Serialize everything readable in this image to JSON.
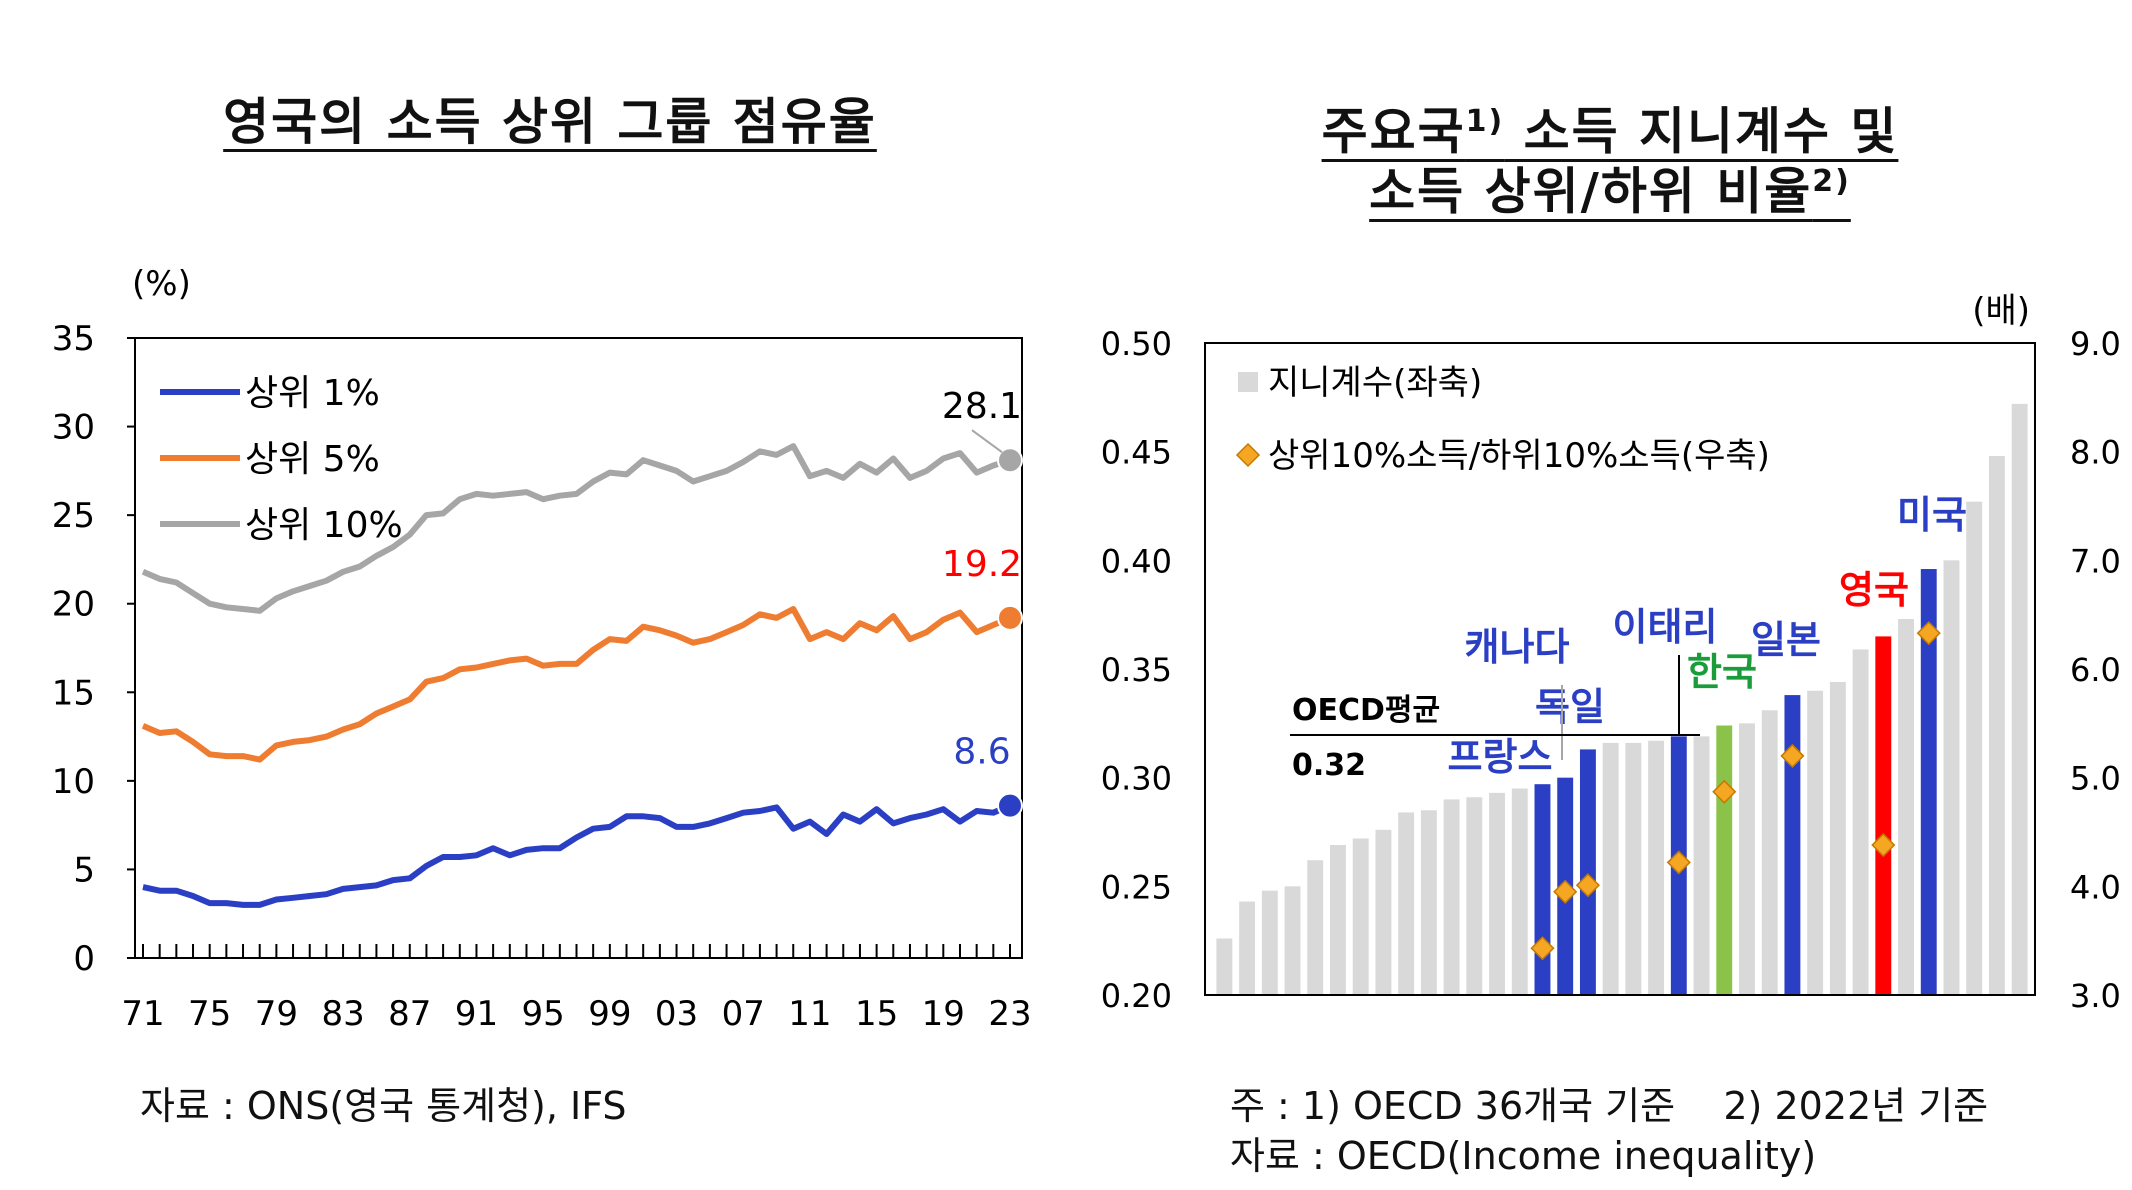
{
  "left_title": "영국의 소득 상위 그룹 점유율",
  "right_title": {
    "line1": "주요국",
    "line1_sup": "1)",
    "line1_rest": " 소득 지니계수 및",
    "line2": "소득 상위/하위 비율",
    "line2_sup": "2)"
  },
  "left_source": "자료 : ONS(영국 통계청), IFS",
  "right_note": "주 : 1) OECD 36개국 기준    2) 2022년 기준",
  "right_source": "자료 : OECD(Income inequality)",
  "chart_data": [
    {
      "type": "line",
      "ylabel": "(%)",
      "ylim": [
        0,
        35
      ],
      "yticks": [
        0,
        5,
        10,
        15,
        20,
        25,
        30,
        35
      ],
      "xticks": [
        "71",
        "75",
        "79",
        "83",
        "87",
        "91",
        "95",
        "99",
        "03",
        "07",
        "11",
        "15",
        "19",
        "23"
      ],
      "x": [
        1971,
        1972,
        1973,
        1974,
        1975,
        1976,
        1977,
        1978,
        1979,
        1980,
        1981,
        1982,
        1983,
        1984,
        1985,
        1986,
        1987,
        1988,
        1989,
        1990,
        1991,
        1992,
        1993,
        1994,
        1995,
        1996,
        1997,
        1998,
        1999,
        2000,
        2001,
        2002,
        2003,
        2004,
        2005,
        2006,
        2007,
        2008,
        2009,
        2010,
        2011,
        2012,
        2013,
        2014,
        2015,
        2016,
        2017,
        2018,
        2019,
        2020,
        2021,
        2022,
        2023
      ],
      "legend_position": "top-left",
      "series": [
        {
          "name": "상위 1%",
          "color": "#2b3fc4",
          "end_label": "8.6",
          "end_label_color": "#2b3fc4",
          "values": [
            4.0,
            3.8,
            3.8,
            3.5,
            3.1,
            3.1,
            3.0,
            3.0,
            3.3,
            3.4,
            3.5,
            3.6,
            3.9,
            4.0,
            4.1,
            4.4,
            4.5,
            5.2,
            5.7,
            5.7,
            5.8,
            6.2,
            5.8,
            6.1,
            6.2,
            6.2,
            6.8,
            7.3,
            7.4,
            8.0,
            8.0,
            7.9,
            7.4,
            7.4,
            7.6,
            7.9,
            8.2,
            8.3,
            8.5,
            7.3,
            7.7,
            7.0,
            8.1,
            7.7,
            8.4,
            7.6,
            7.9,
            8.1,
            8.4,
            7.7,
            8.3,
            8.2,
            8.6
          ]
        },
        {
          "name": "상위 5%",
          "color": "#ee7d31",
          "end_label": "19.2",
          "end_label_color": "#ff0000",
          "values": [
            13.1,
            12.7,
            12.8,
            12.2,
            11.5,
            11.4,
            11.4,
            11.2,
            12.0,
            12.2,
            12.3,
            12.5,
            12.9,
            13.2,
            13.8,
            14.2,
            14.6,
            15.6,
            15.8,
            16.3,
            16.4,
            16.6,
            16.8,
            16.9,
            16.5,
            16.6,
            16.6,
            17.4,
            18.0,
            17.9,
            18.7,
            18.5,
            18.2,
            17.8,
            18.0,
            18.4,
            18.8,
            19.4,
            19.2,
            19.7,
            18.0,
            18.4,
            18.0,
            18.9,
            18.5,
            19.3,
            18.0,
            18.4,
            19.1,
            19.5,
            18.4,
            18.8,
            19.2
          ]
        },
        {
          "name": "상위 10%",
          "color": "#a6a6a6",
          "end_label": "28.1",
          "end_label_color": "#000000",
          "values": [
            21.8,
            21.4,
            21.2,
            20.6,
            20.0,
            19.8,
            19.7,
            19.6,
            20.3,
            20.7,
            21.0,
            21.3,
            21.8,
            22.1,
            22.7,
            23.2,
            23.9,
            25.0,
            25.1,
            25.9,
            26.2,
            26.1,
            26.2,
            26.3,
            25.9,
            26.1,
            26.2,
            26.9,
            27.4,
            27.3,
            28.1,
            27.8,
            27.5,
            26.9,
            27.2,
            27.5,
            28.0,
            28.6,
            28.4,
            28.9,
            27.2,
            27.5,
            27.1,
            27.9,
            27.4,
            28.2,
            27.1,
            27.5,
            28.2,
            28.5,
            27.4,
            27.8,
            28.1
          ]
        }
      ]
    },
    {
      "type": "bar",
      "y_left_range": [
        0.2,
        0.5
      ],
      "y_left_ticks": [
        "0.20",
        "0.25",
        "0.30",
        "0.35",
        "0.40",
        "0.45",
        "0.50"
      ],
      "y_right_label": "(배)",
      "y_right_range": [
        3.0,
        9.0
      ],
      "y_right_ticks": [
        "3.0",
        "4.0",
        "5.0",
        "6.0",
        "7.0",
        "8.0",
        "9.0"
      ],
      "legend": [
        "지니계수(좌축)",
        "상위10%소득/하위10%소득(우축)"
      ],
      "legend_position": "top-left",
      "bar_default_color": "#d9d9d9",
      "oecd_average_label": "OECD평균",
      "oecd_average_value": "0.32",
      "gini": [
        0.226,
        0.243,
        0.248,
        0.25,
        0.262,
        0.269,
        0.272,
        0.276,
        0.284,
        0.285,
        0.29,
        0.291,
        0.293,
        0.295,
        0.297,
        0.3,
        0.313,
        0.316,
        0.316,
        0.317,
        0.319,
        0.319,
        0.324,
        0.325,
        0.331,
        0.338,
        0.34,
        0.344,
        0.359,
        0.365,
        0.373,
        0.396,
        0.4,
        0.427,
        0.448,
        0.472
      ],
      "highlight": [
        {
          "index": 14,
          "label": "프랑스",
          "color": "#2b3fc4",
          "label_color": "#2b3fc4"
        },
        {
          "index": 15,
          "label": "캐나다",
          "color": "#2b3fc4",
          "label_color": "#2b3fc4"
        },
        {
          "index": 16,
          "label": "독일",
          "color": "#2b3fc4",
          "label_color": "#2b3fc4"
        },
        {
          "index": 20,
          "label": "이태리",
          "color": "#2b3fc4",
          "label_color": "#2b3fc4"
        },
        {
          "index": 22,
          "label": "한국",
          "color": "#8bc34a",
          "label_color": "#1a9c3a"
        },
        {
          "index": 25,
          "label": "일본",
          "color": "#2b3fc4",
          "label_color": "#2b3fc4"
        },
        {
          "index": 29,
          "label": "영국",
          "color": "#ff0000",
          "label_color": "#ff0000"
        },
        {
          "index": 31,
          "label": "미국",
          "color": "#2b3fc4",
          "label_color": "#2b3fc4"
        }
      ],
      "ratio_points": [
        {
          "index": 14,
          "value": 3.43
        },
        {
          "index": 15,
          "value": 3.95
        },
        {
          "index": 16,
          "value": 4.01
        },
        {
          "index": 20,
          "value": 4.22
        },
        {
          "index": 22,
          "value": 4.87
        },
        {
          "index": 25,
          "value": 5.2
        },
        {
          "index": 29,
          "value": 4.38
        },
        {
          "index": 31,
          "value": 6.33
        }
      ],
      "marker_color": "#f5a623"
    }
  ]
}
